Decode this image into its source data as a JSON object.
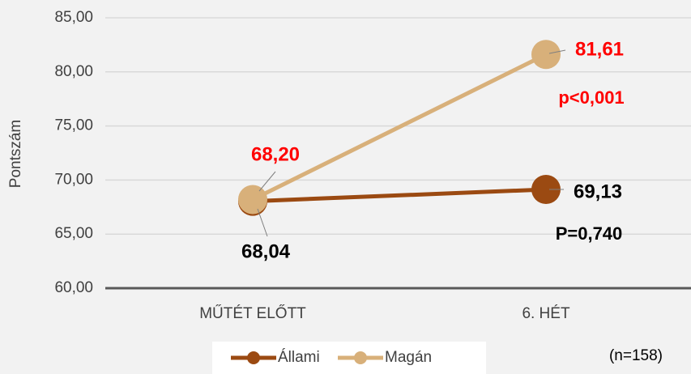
{
  "chart_data": {
    "type": "line",
    "y_label": "Pontszám",
    "categories": [
      "MŰTÉT ELŐTT",
      "6. HÉT"
    ],
    "series": [
      {
        "name": "Állami",
        "color": "#9b4a12",
        "label_color": "#000000",
        "values": [
          68.04,
          69.13
        ],
        "value_labels": [
          "68,04",
          "69,13"
        ]
      },
      {
        "name": "Magán",
        "color": "#d8b07a",
        "label_color": "#ff0000",
        "values": [
          68.2,
          81.61
        ],
        "value_labels": [
          "68,20",
          "81,61"
        ]
      }
    ],
    "ylim": [
      60,
      85
    ],
    "yticks": [
      {
        "value": 60,
        "label": "60,00"
      },
      {
        "value": 65,
        "label": "65,00"
      },
      {
        "value": 70,
        "label": "70,00"
      },
      {
        "value": 75,
        "label": "75,00"
      },
      {
        "value": 80,
        "label": "80,00"
      },
      {
        "value": 85,
        "label": "85,00"
      }
    ],
    "grid": true,
    "legend": "bottom",
    "annotations": [
      {
        "text": "p<0,001",
        "color": "#ff0000"
      },
      {
        "text": "P=0,740",
        "color": "#000000"
      },
      {
        "text": "(n=158)",
        "color": "#000000"
      }
    ]
  }
}
